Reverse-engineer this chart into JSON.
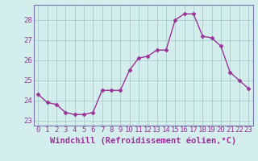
{
  "x": [
    0,
    1,
    2,
    3,
    4,
    5,
    6,
    7,
    8,
    9,
    10,
    11,
    12,
    13,
    14,
    15,
    16,
    17,
    18,
    19,
    20,
    21,
    22,
    23
  ],
  "y": [
    24.3,
    23.9,
    23.8,
    23.4,
    23.3,
    23.3,
    23.4,
    24.5,
    24.5,
    24.5,
    25.5,
    26.1,
    26.2,
    26.5,
    26.5,
    28.0,
    28.3,
    28.3,
    27.2,
    27.1,
    26.7,
    25.4,
    25.0,
    24.6
  ],
  "line_color": "#993399",
  "marker": "D",
  "markersize": 2.5,
  "linewidth": 1.0,
  "xlabel": "Windchill (Refroidissement éolien,°C)",
  "xlabel_fontsize": 7.5,
  "ylabel_ticks": [
    23,
    24,
    25,
    26,
    27,
    28
  ],
  "xtick_labels": [
    "0",
    "1",
    "2",
    "3",
    "4",
    "5",
    "6",
    "7",
    "8",
    "9",
    "10",
    "11",
    "12",
    "13",
    "14",
    "15",
    "16",
    "17",
    "18",
    "19",
    "20",
    "21",
    "22",
    "23"
  ],
  "xticks": [
    0,
    1,
    2,
    3,
    4,
    5,
    6,
    7,
    8,
    9,
    10,
    11,
    12,
    13,
    14,
    15,
    16,
    17,
    18,
    19,
    20,
    21,
    22,
    23
  ],
  "xlim": [
    -0.5,
    23.5
  ],
  "ylim": [
    22.75,
    28.75
  ],
  "background_color": "#d4eeee",
  "grid_color": "#aacccc",
  "tick_color": "#993399",
  "tick_fontsize": 6.5,
  "border_color": "#7777aa"
}
